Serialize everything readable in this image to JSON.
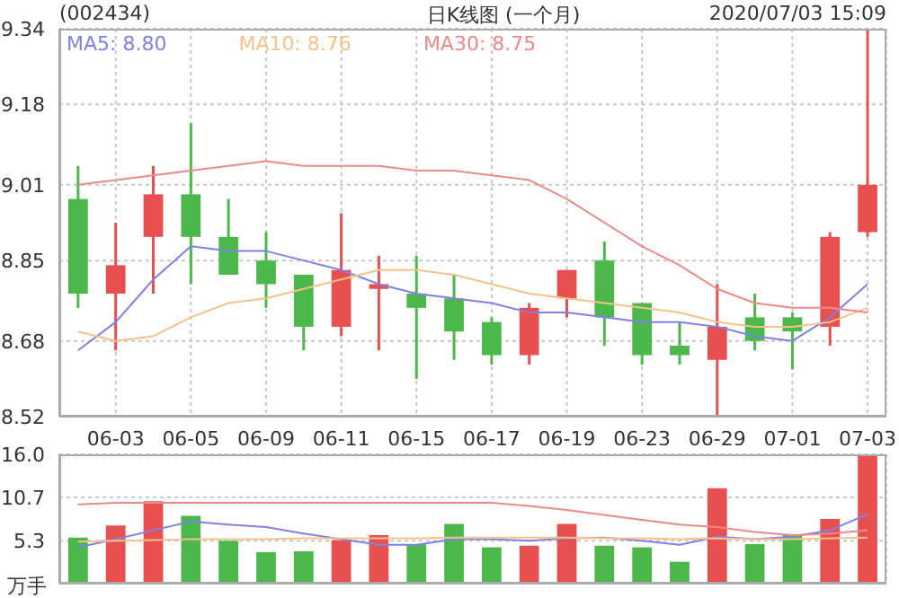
{
  "chart_data": [
    {
      "type": "candlestick",
      "title": "(002434)",
      "subtitle": "日K线图 (一个月)",
      "annotations": [
        "2020/07/03 15:09"
      ],
      "categories": [
        null,
        "06-03",
        null,
        "06-05",
        null,
        "06-09",
        null,
        "06-11",
        null,
        "06-15",
        null,
        "06-17",
        null,
        "06-19",
        null,
        "06-23",
        null,
        "06-29",
        null,
        "07-01",
        null,
        "07-03"
      ],
      "ohlc": [
        [
          8.98,
          9.05,
          8.75,
          8.78
        ],
        [
          8.78,
          8.93,
          8.66,
          8.84
        ],
        [
          8.9,
          9.05,
          8.78,
          8.99
        ],
        [
          8.99,
          9.14,
          8.8,
          8.9
        ],
        [
          8.9,
          8.98,
          8.82,
          8.82
        ],
        [
          8.85,
          8.91,
          8.75,
          8.8
        ],
        [
          8.82,
          8.82,
          8.66,
          8.71
        ],
        [
          8.71,
          8.95,
          8.69,
          8.83
        ],
        [
          8.79,
          8.86,
          8.66,
          8.8
        ],
        [
          8.78,
          8.86,
          8.6,
          8.75
        ],
        [
          8.77,
          8.82,
          8.64,
          8.7
        ],
        [
          8.72,
          8.73,
          8.63,
          8.65
        ],
        [
          8.65,
          8.76,
          8.63,
          8.75
        ],
        [
          8.77,
          8.83,
          8.73,
          8.83
        ],
        [
          8.85,
          8.89,
          8.67,
          8.73
        ],
        [
          8.76,
          8.76,
          8.63,
          8.65
        ],
        [
          8.67,
          8.72,
          8.63,
          8.65
        ],
        [
          8.64,
          8.8,
          8.52,
          8.71
        ],
        [
          8.73,
          8.78,
          8.66,
          8.68
        ],
        [
          8.73,
          8.74,
          8.62,
          8.7
        ],
        [
          8.71,
          8.91,
          8.67,
          8.9
        ],
        [
          8.91,
          9.34,
          8.9,
          9.01
        ]
      ],
      "colors": [
        "#4cb84c",
        "#e8504f",
        "#e8504f",
        "#4cb84c",
        "#4cb84c",
        "#4cb84c",
        "#4cb84c",
        "#e8504f",
        "#e8504f",
        "#4cb84c",
        "#4cb84c",
        "#4cb84c",
        "#e8504f",
        "#e8504f",
        "#4cb84c",
        "#4cb84c",
        "#4cb84c",
        "#e8504f",
        "#4cb84c",
        "#4cb84c",
        "#e8504f",
        "#e8504f"
      ],
      "series": [
        {
          "type": "line",
          "name": "MA5: 8.80",
          "color": "#8080e6",
          "values": [
            8.66,
            8.72,
            8.81,
            8.88,
            8.87,
            8.87,
            8.85,
            8.83,
            8.8,
            8.78,
            8.77,
            8.76,
            8.74,
            8.74,
            8.73,
            8.72,
            8.72,
            8.71,
            8.69,
            8.68,
            8.73,
            8.8
          ]
        },
        {
          "type": "line",
          "name": "MA10: 8.76",
          "color": "#f5c28a",
          "values": [
            8.7,
            8.68,
            8.69,
            8.73,
            8.76,
            8.77,
            8.79,
            8.81,
            8.83,
            8.83,
            8.82,
            8.8,
            8.78,
            8.77,
            8.76,
            8.75,
            8.74,
            8.72,
            8.71,
            8.71,
            8.72,
            8.75
          ]
        },
        {
          "type": "line",
          "name": "MA30: 8.75",
          "color": "#ec8a8a",
          "values": [
            9.01,
            9.02,
            9.03,
            9.04,
            9.05,
            9.06,
            9.05,
            9.05,
            9.05,
            9.04,
            9.04,
            9.03,
            9.02,
            8.98,
            8.93,
            8.88,
            8.84,
            8.79,
            8.76,
            8.75,
            8.75,
            8.74
          ]
        }
      ],
      "ylim": [
        8.52,
        9.34
      ],
      "yticks": [
        8.52,
        8.68,
        8.85,
        9.01,
        9.18,
        9.34
      ],
      "grid": true,
      "legend": "top left"
    },
    {
      "type": "bar",
      "ylabel": "万手",
      "tick_labels": "y",
      "categories": [
        null,
        null,
        null,
        null,
        null,
        null,
        null,
        null,
        null,
        null,
        null,
        null,
        null,
        null,
        null,
        null,
        null,
        null,
        null,
        null,
        null,
        null
      ],
      "series": [
        {
          "type": "bar",
          "values": [
            5.7,
            7.2,
            10.2,
            8.4,
            5.3,
            3.9,
            4.0,
            5.4,
            6.0,
            4.9,
            7.4,
            4.5,
            4.7,
            7.4,
            4.7,
            4.5,
            2.7,
            11.8,
            4.9,
            6.0,
            8.0,
            15.9
          ],
          "colors": [
            "#4cb84c",
            "#e8504f",
            "#e8504f",
            "#4cb84c",
            "#4cb84c",
            "#4cb84c",
            "#4cb84c",
            "#e8504f",
            "#e8504f",
            "#4cb84c",
            "#4cb84c",
            "#4cb84c",
            "#e8504f",
            "#e8504f",
            "#4cb84c",
            "#4cb84c",
            "#4cb84c",
            "#e8504f",
            "#4cb84c",
            "#4cb84c",
            "#e8504f",
            "#e8504f"
          ]
        },
        {
          "type": "line",
          "color": "#8080e6",
          "values": [
            4.5,
            5.5,
            6.6,
            7.7,
            7.3,
            7.0,
            6.2,
            5.5,
            4.8,
            4.8,
            5.5,
            5.5,
            5.3,
            5.6,
            5.7,
            5.3,
            4.8,
            5.8,
            5.5,
            5.8,
            6.6,
            8.6
          ]
        },
        {
          "type": "line",
          "color": "#f5c28a",
          "values": [
            5.2,
            5.3,
            5.4,
            5.5,
            5.5,
            5.5,
            5.6,
            5.6,
            5.6,
            5.6,
            5.7,
            5.7,
            5.7,
            5.7,
            5.6,
            5.6,
            5.5,
            5.6,
            5.5,
            5.5,
            5.6,
            5.7
          ]
        },
        {
          "type": "line",
          "color": "#ec8a8a",
          "values": [
            9.8,
            10.0,
            10.0,
            10.0,
            10.0,
            10.0,
            10.0,
            10.0,
            10.0,
            10.0,
            10.0,
            10.0,
            9.6,
            9.1,
            8.5,
            7.9,
            7.3,
            7.0,
            6.4,
            6.0,
            6.2,
            6.6
          ]
        }
      ],
      "ylim": [
        0,
        16
      ],
      "yticks": [
        {
          "value": 5.3,
          "label": "5.3"
        },
        {
          "value": 10.7,
          "label": "10.7"
        },
        {
          "value": 16,
          "label": "16.0"
        }
      ],
      "grid": true
    }
  ]
}
